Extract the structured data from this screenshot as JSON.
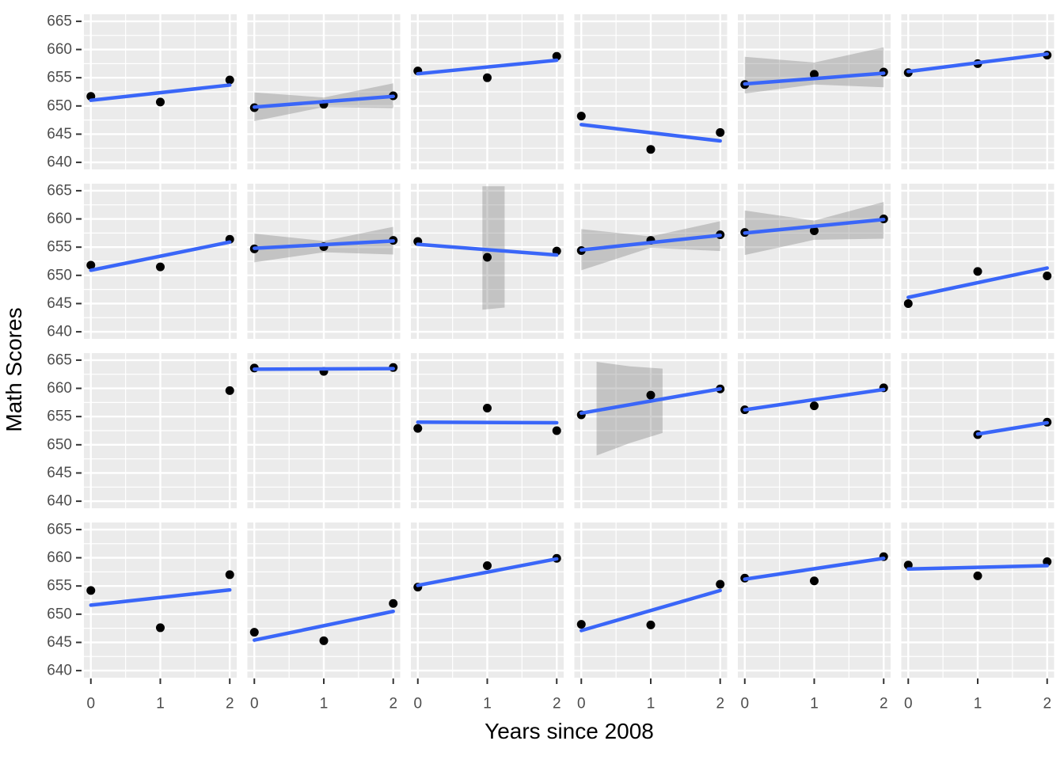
{
  "chart_data": {
    "type": "scatter",
    "subtype": "faceted-scatter-with-linear-smooth",
    "title": "",
    "xlabel": "Years since 2008",
    "ylabel": "Math Scores",
    "x_ticks": [
      0,
      1,
      2
    ],
    "y_ticks": [
      640,
      645,
      650,
      655,
      660,
      665
    ],
    "xlim": [
      -0.1,
      2.1
    ],
    "ylim": [
      638.75,
      666.25
    ],
    "grid": "major-and-minor-white-on-gray",
    "legend": "none",
    "facets": {
      "rows": 4,
      "cols": 6
    },
    "colors": {
      "panel_bg": "#EBEBEB",
      "grid": "#FFFFFF",
      "smooth_line": "#3A66F8",
      "ci_fill_rgba": "102,102,102,0.30",
      "point": "#000000",
      "tick_label": "#4D4D4D",
      "tick_mark": "#333333",
      "axis_title": "#000000"
    },
    "panels": [
      {
        "row": 0,
        "col": 0,
        "points": [
          [
            0,
            651.7
          ],
          [
            1,
            650.7
          ],
          [
            2,
            654.6
          ]
        ],
        "line": [
          [
            0,
            651.0
          ],
          [
            2,
            653.7
          ]
        ],
        "ci": null
      },
      {
        "row": 0,
        "col": 1,
        "points": [
          [
            0,
            649.7
          ],
          [
            1,
            650.3
          ],
          [
            2,
            651.8
          ]
        ],
        "line": [
          [
            0,
            649.8
          ],
          [
            2,
            651.7
          ]
        ],
        "ci": [
          [
            0,
            652.4
          ],
          [
            1,
            651.5
          ],
          [
            2,
            654.0
          ],
          [
            2,
            649.6
          ],
          [
            1,
            649.8
          ],
          [
            0,
            647.3
          ]
        ]
      },
      {
        "row": 0,
        "col": 2,
        "points": [
          [
            0,
            656.2
          ],
          [
            1,
            655.0
          ],
          [
            2,
            658.8
          ]
        ],
        "line": [
          [
            0,
            655.7
          ],
          [
            2,
            658.1
          ]
        ],
        "ci": null
      },
      {
        "row": 0,
        "col": 3,
        "points": [
          [
            0,
            648.2
          ],
          [
            1,
            642.3
          ],
          [
            2,
            645.3
          ]
        ],
        "line": [
          [
            0,
            646.7
          ],
          [
            2,
            643.8
          ]
        ],
        "ci": null
      },
      {
        "row": 0,
        "col": 4,
        "points": [
          [
            0,
            653.8
          ],
          [
            1,
            655.6
          ],
          [
            2,
            656.0
          ]
        ],
        "line": [
          [
            0,
            653.9
          ],
          [
            2,
            655.8
          ]
        ],
        "ci": [
          [
            0,
            658.7
          ],
          [
            1,
            657.7
          ],
          [
            2,
            660.4
          ],
          [
            2,
            653.3
          ],
          [
            1,
            653.8
          ],
          [
            0,
            652.2
          ]
        ]
      },
      {
        "row": 0,
        "col": 5,
        "points": [
          [
            0,
            655.9
          ],
          [
            1,
            657.5
          ],
          [
            2,
            659.0
          ]
        ],
        "line": [
          [
            0,
            656.1
          ],
          [
            2,
            659.2
          ]
        ],
        "ci": null
      },
      {
        "row": 1,
        "col": 0,
        "points": [
          [
            0,
            651.8
          ],
          [
            1,
            651.5
          ],
          [
            2,
            656.4
          ]
        ],
        "line": [
          [
            0,
            650.9
          ],
          [
            2,
            655.9
          ]
        ],
        "ci": null
      },
      {
        "row": 1,
        "col": 1,
        "points": [
          [
            0,
            654.7
          ],
          [
            1,
            655.1
          ],
          [
            2,
            656.2
          ]
        ],
        "line": [
          [
            0,
            654.8
          ],
          [
            2,
            656.1
          ]
        ],
        "ci": [
          [
            0,
            657.4
          ],
          [
            1,
            656.1
          ],
          [
            2,
            658.6
          ],
          [
            2,
            653.7
          ],
          [
            1,
            654.1
          ],
          [
            0,
            652.3
          ]
        ]
      },
      {
        "row": 1,
        "col": 2,
        "points": [
          [
            0,
            656.0
          ],
          [
            1,
            653.2
          ],
          [
            2,
            654.3
          ]
        ],
        "line": [
          [
            0,
            655.5
          ],
          [
            2,
            653.6
          ]
        ],
        "ci": [
          [
            0.93,
            665.8
          ],
          [
            1.25,
            665.8
          ],
          [
            1.25,
            644.3
          ],
          [
            0.93,
            643.9
          ]
        ]
      },
      {
        "row": 1,
        "col": 3,
        "points": [
          [
            0,
            654.4
          ],
          [
            1,
            656.2
          ],
          [
            2,
            657.2
          ]
        ],
        "line": [
          [
            0,
            654.5
          ],
          [
            2,
            657.1
          ]
        ],
        "ci": [
          [
            0,
            658.2
          ],
          [
            1,
            656.9
          ],
          [
            2,
            659.6
          ],
          [
            2,
            654.3
          ],
          [
            1,
            654.9
          ],
          [
            0,
            650.9
          ]
        ]
      },
      {
        "row": 1,
        "col": 4,
        "points": [
          [
            0,
            657.6
          ],
          [
            1,
            657.9
          ],
          [
            2,
            660.0
          ]
        ],
        "line": [
          [
            0,
            657.5
          ],
          [
            2,
            659.9
          ]
        ],
        "ci": [
          [
            0,
            661.5
          ],
          [
            1,
            659.7
          ],
          [
            2,
            663.0
          ],
          [
            2,
            656.5
          ],
          [
            1,
            656.3
          ],
          [
            0,
            653.6
          ]
        ]
      },
      {
        "row": 1,
        "col": 5,
        "points": [
          [
            0,
            645.0
          ],
          [
            1,
            650.7
          ],
          [
            2,
            649.9
          ]
        ],
        "line": [
          [
            0,
            646.1
          ],
          [
            2,
            651.3
          ]
        ],
        "ci": null
      },
      {
        "row": 2,
        "col": 0,
        "points": [
          [
            2,
            659.6
          ]
        ],
        "line": null,
        "ci": null
      },
      {
        "row": 2,
        "col": 1,
        "points": [
          [
            0,
            663.6
          ],
          [
            1,
            663.0
          ],
          [
            2,
            663.7
          ]
        ],
        "line": [
          [
            0,
            663.4
          ],
          [
            2,
            663.5
          ]
        ],
        "ci": null
      },
      {
        "row": 2,
        "col": 2,
        "points": [
          [
            0,
            652.9
          ],
          [
            1,
            656.5
          ],
          [
            2,
            652.5
          ]
        ],
        "line": [
          [
            0,
            654.0
          ],
          [
            2,
            653.9
          ]
        ],
        "ci": null
      },
      {
        "row": 2,
        "col": 3,
        "points": [
          [
            0,
            655.3
          ],
          [
            1,
            658.8
          ],
          [
            2,
            659.9
          ]
        ],
        "line": [
          [
            0,
            655.6
          ],
          [
            2,
            659.9
          ]
        ],
        "ci": [
          [
            0.22,
            664.7
          ],
          [
            0.7,
            663.9
          ],
          [
            1.17,
            663.5
          ],
          [
            1.17,
            652.1
          ],
          [
            0.7,
            650.3
          ],
          [
            0.22,
            648.1
          ]
        ]
      },
      {
        "row": 2,
        "col": 4,
        "points": [
          [
            0,
            656.2
          ],
          [
            1,
            656.9
          ],
          [
            2,
            660.1
          ]
        ],
        "line": [
          [
            0,
            656.2
          ],
          [
            2,
            659.8
          ]
        ],
        "ci": null
      },
      {
        "row": 2,
        "col": 5,
        "points": [
          [
            1,
            651.8
          ],
          [
            2,
            654.0
          ]
        ],
        "line": [
          [
            1,
            651.9
          ],
          [
            2,
            653.9
          ]
        ],
        "ci": null
      },
      {
        "row": 3,
        "col": 0,
        "points": [
          [
            0,
            654.2
          ],
          [
            1,
            647.6
          ],
          [
            2,
            657.0
          ]
        ],
        "line": [
          [
            0,
            651.6
          ],
          [
            2,
            654.3
          ]
        ],
        "ci": null
      },
      {
        "row": 3,
        "col": 1,
        "points": [
          [
            0,
            646.8
          ],
          [
            1,
            645.3
          ],
          [
            2,
            651.9
          ]
        ],
        "line": [
          [
            0,
            645.4
          ],
          [
            2,
            650.5
          ]
        ],
        "ci": null
      },
      {
        "row": 3,
        "col": 2,
        "points": [
          [
            0,
            654.8
          ],
          [
            1,
            658.6
          ],
          [
            2,
            659.9
          ]
        ],
        "line": [
          [
            0,
            655.1
          ],
          [
            2,
            659.8
          ]
        ],
        "ci": null
      },
      {
        "row": 3,
        "col": 3,
        "points": [
          [
            0,
            648.2
          ],
          [
            1,
            648.1
          ],
          [
            2,
            655.3
          ]
        ],
        "line": [
          [
            0,
            647.1
          ],
          [
            2,
            654.2
          ]
        ],
        "ci": null
      },
      {
        "row": 3,
        "col": 4,
        "points": [
          [
            0,
            656.4
          ],
          [
            1,
            655.9
          ],
          [
            2,
            660.2
          ]
        ],
        "line": [
          [
            0,
            656.2
          ],
          [
            2,
            659.9
          ]
        ],
        "ci": null
      },
      {
        "row": 3,
        "col": 5,
        "points": [
          [
            0,
            658.7
          ],
          [
            1,
            656.8
          ],
          [
            2,
            659.3
          ]
        ],
        "line": [
          [
            0,
            658.0
          ],
          [
            2,
            658.6
          ]
        ],
        "ci": null
      }
    ]
  }
}
